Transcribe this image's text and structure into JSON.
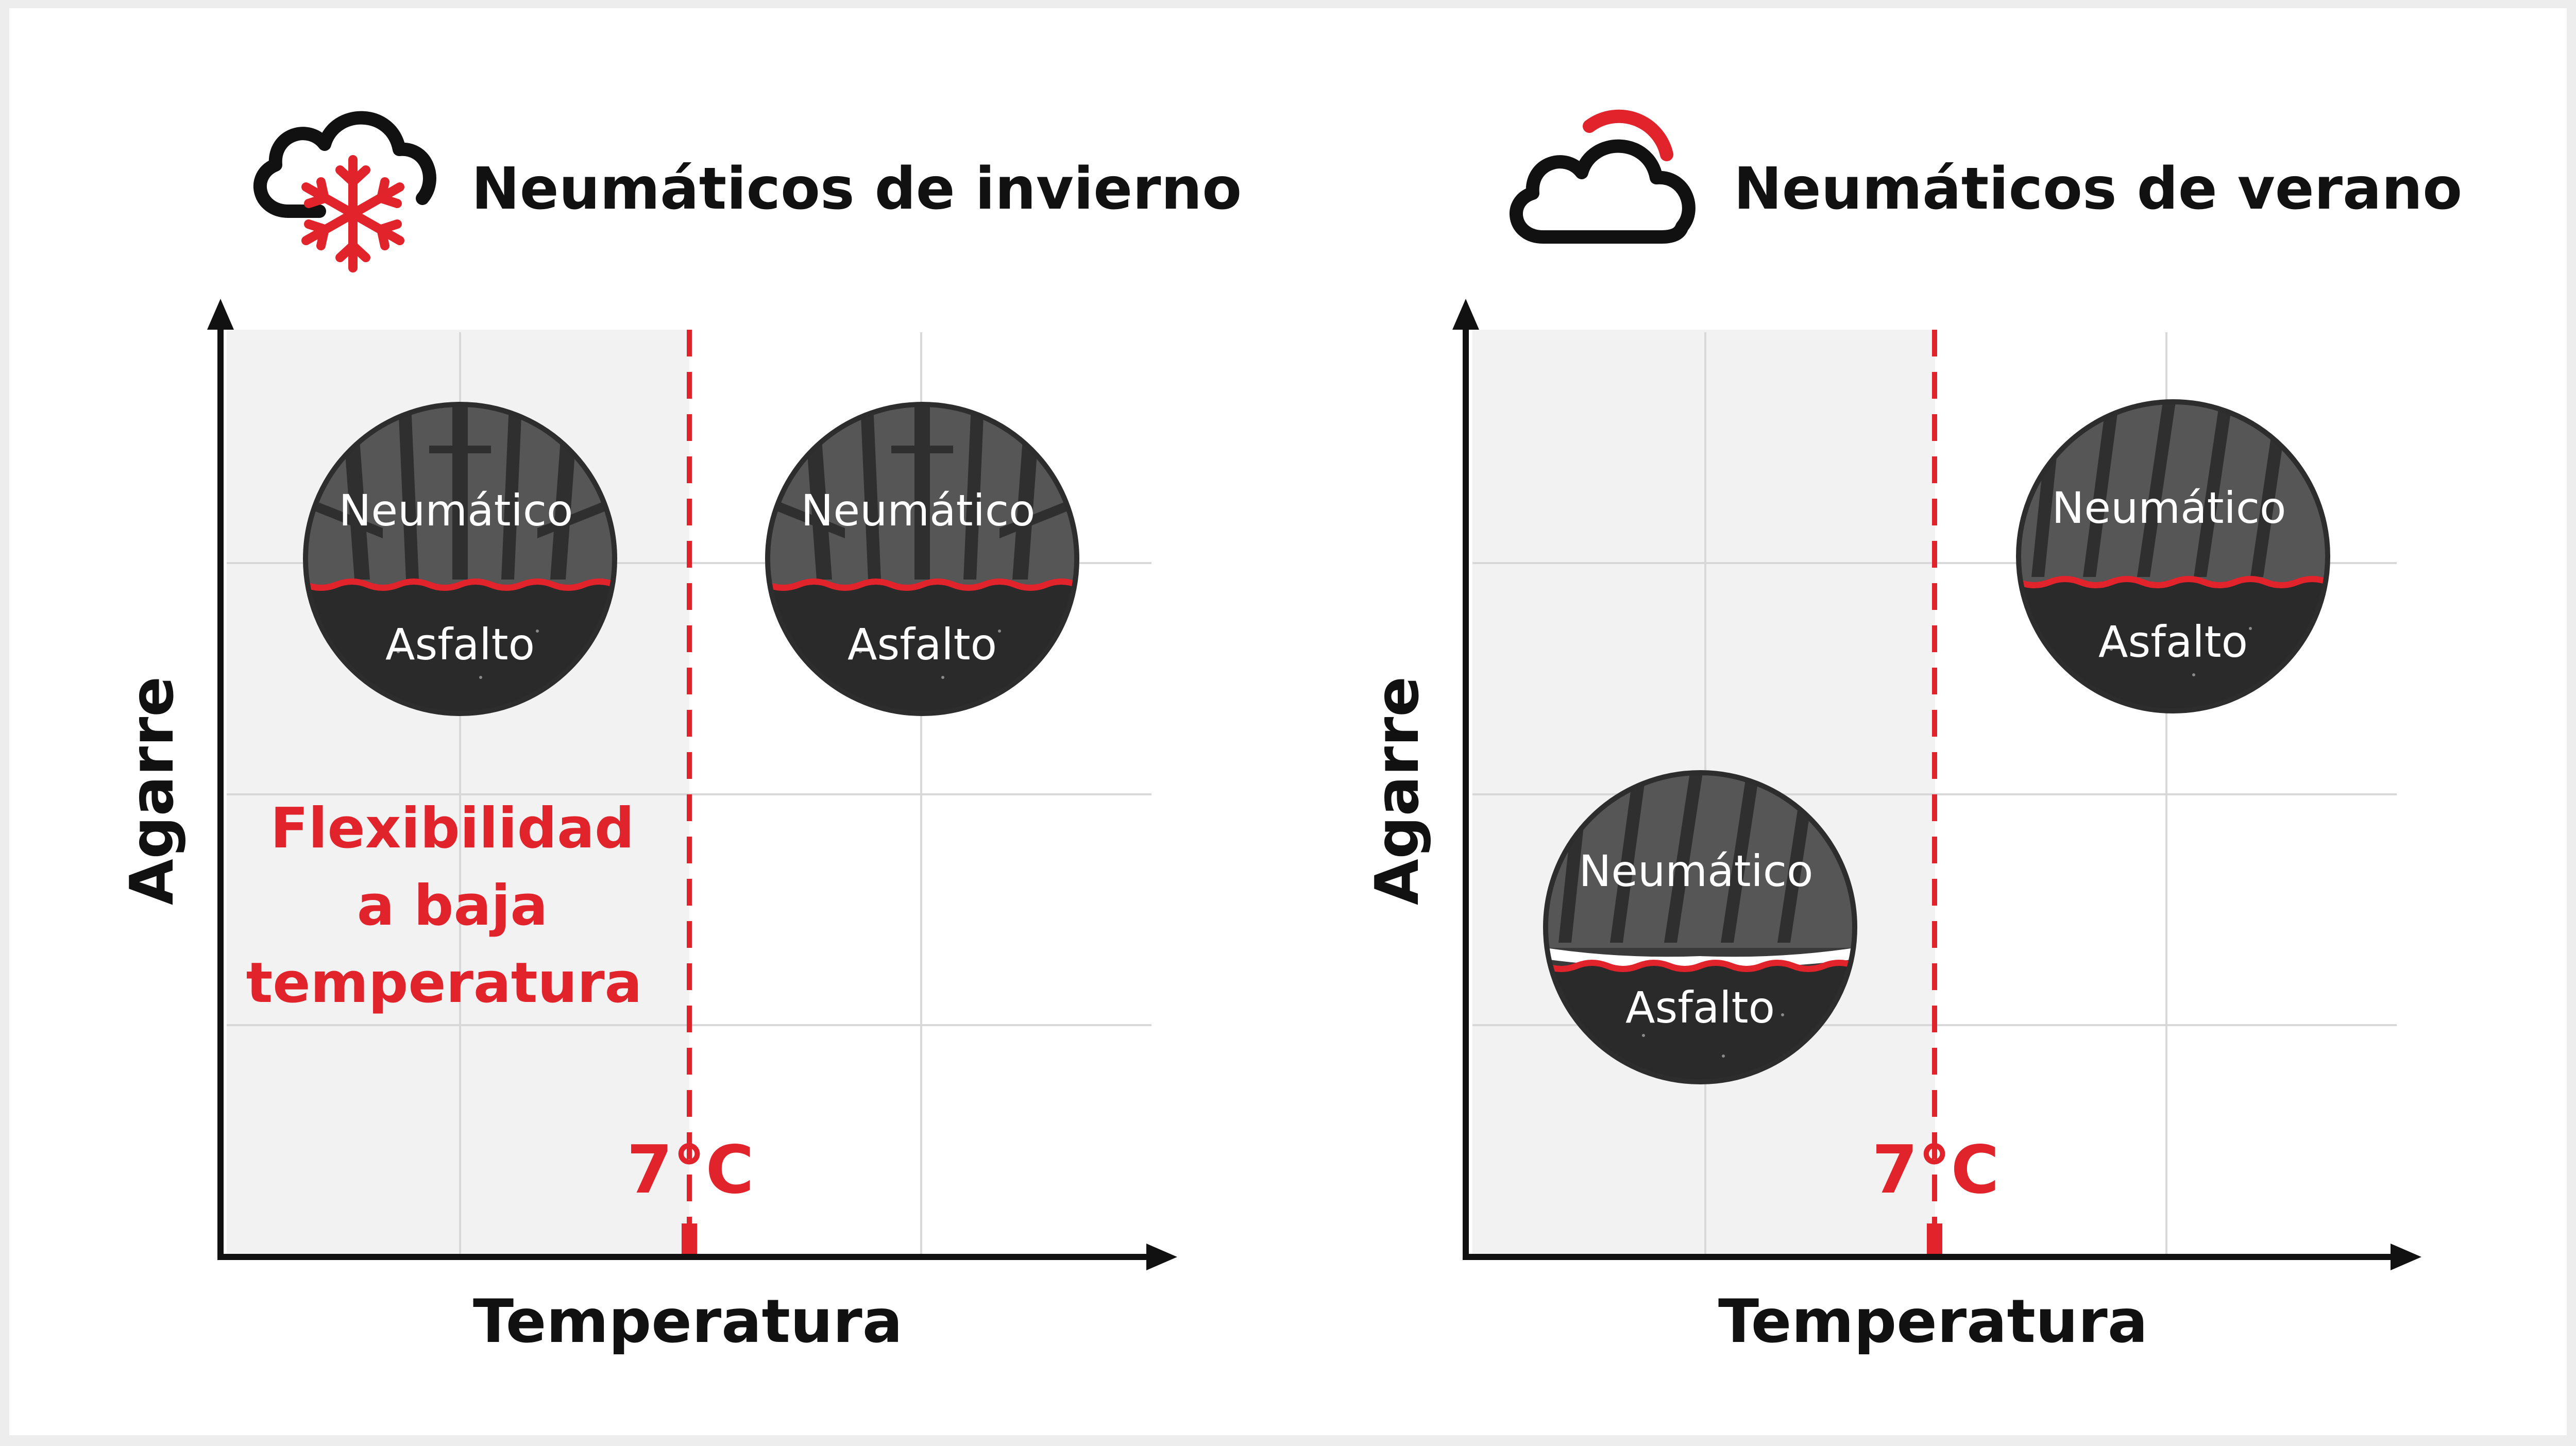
{
  "colors": {
    "accent_red": "#e1232c",
    "tire_dark": "#3a3a3a",
    "tire_tread": "#5d5d5d",
    "shaded_zone": "#f2f2f2",
    "grid": "#d8d8d8",
    "axis": "#111111"
  },
  "panels": [
    {
      "title": "Neumáticos de invierno",
      "icon": "cloud-snowflake-icon",
      "y_label": "Agarre",
      "x_label": "Temperatura",
      "threshold_label": "7°C",
      "note": [
        "Flexibilidad",
        "a baja",
        "temperatura"
      ],
      "tires": [
        {
          "top": "Neumático",
          "bottom": "Asfalto",
          "zone": "below 7°C",
          "grip": "high"
        },
        {
          "top": "Neumático",
          "bottom": "Asfalto",
          "zone": "above 7°C",
          "grip": "high"
        }
      ]
    },
    {
      "title": "Neumáticos de verano",
      "icon": "cloud-sun-icon",
      "y_label": "Agarre",
      "x_label": "Temperatura",
      "threshold_label": "7°C",
      "note": [],
      "tires": [
        {
          "top": "Neumático",
          "bottom": "Asfalto",
          "zone": "below 7°C",
          "grip": "low"
        },
        {
          "top": "Neumático",
          "bottom": "Asfalto",
          "zone": "above 7°C",
          "grip": "high"
        }
      ]
    }
  ]
}
